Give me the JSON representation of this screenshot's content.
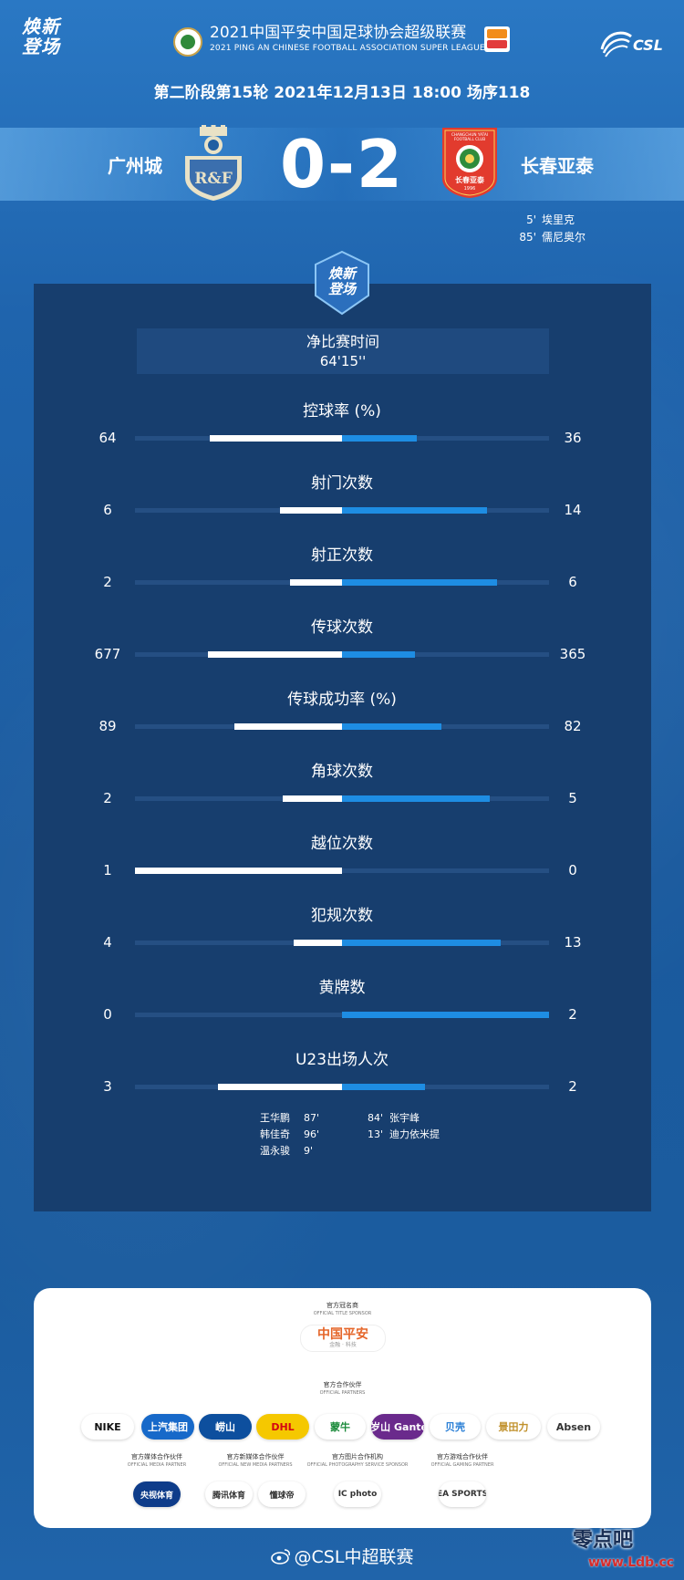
{
  "header": {
    "brand_line1": "焕新",
    "brand_line2": "登场",
    "league_title": "2021中国平安中国足球协会超级联赛",
    "league_subtitle": "2021 PING AN CHINESE FOOTBALL ASSOCIATION SUPER LEAGUE",
    "csl_text": "CSL"
  },
  "match": {
    "info": "第二阶段第15轮 2021年12月13日 18:00 场序118",
    "home_team": "广州城",
    "away_team": "长春亚泰",
    "score": "0-2",
    "home_crest_text": "R&F",
    "away_crest_top": "CHANGCHUN YATAI",
    "away_crest_mid": "FOOTBALL CLUB",
    "away_crest_name": "长春亚泰",
    "away_crest_year": "1996",
    "scorers": [
      {
        "minute": "5'",
        "name": "埃里克"
      },
      {
        "minute": "85'",
        "name": "儒尼奥尔"
      }
    ]
  },
  "center_badge": {
    "line1": "焕新",
    "line2": "登场"
  },
  "net_time": {
    "label": "净比赛时间",
    "value": "64'15''"
  },
  "stats": [
    {
      "label": "控球率 (%)",
      "home": "64",
      "away": "36",
      "home_v": 64,
      "away_v": 36
    },
    {
      "label": "射门次数",
      "home": "6",
      "away": "14",
      "home_v": 6,
      "away_v": 14
    },
    {
      "label": "射正次数",
      "home": "2",
      "away": "6",
      "home_v": 2,
      "away_v": 6
    },
    {
      "label": "传球次数",
      "home": "677",
      "away": "365",
      "home_v": 677,
      "away_v": 365
    },
    {
      "label": "传球成功率 (%)",
      "home": "89",
      "away": "82",
      "home_v": 89,
      "away_v": 82
    },
    {
      "label": "角球次数",
      "home": "2",
      "away": "5",
      "home_v": 2,
      "away_v": 5
    },
    {
      "label": "越位次数",
      "home": "1",
      "away": "0",
      "home_v": 1,
      "away_v": 0
    },
    {
      "label": "犯规次数",
      "home": "4",
      "away": "13",
      "home_v": 4,
      "away_v": 13
    },
    {
      "label": "黄牌数",
      "home": "0",
      "away": "2",
      "home_v": 0,
      "away_v": 2
    },
    {
      "label": "U23出场人次",
      "home": "3",
      "away": "2",
      "home_v": 3,
      "away_v": 2
    }
  ],
  "u23": {
    "home": [
      {
        "name": "王华鹏",
        "minute": "87'"
      },
      {
        "name": "韩佳奇",
        "minute": "96'"
      },
      {
        "name": "温永骏",
        "minute": "9'"
      }
    ],
    "away": [
      {
        "minute": "84'",
        "name": "张宇峰"
      },
      {
        "minute": "13'",
        "name": "迪力依米提"
      }
    ]
  },
  "partners": {
    "title_sponsor_head": "官方冠名商",
    "title_sponsor_sub": "OFFICIAL TITLE SPONSOR",
    "title_sponsor_name": "中国平安",
    "title_sponsor_tag": "金融 · 科技",
    "official_head": "官方合作伙伴",
    "official_sub": "OFFICIAL PARTNERS",
    "official": [
      "NIKE",
      "上汽集团",
      "崂山",
      "DHL",
      "蒙牛",
      "百岁山 Ganten",
      "贝壳",
      "景田力",
      "Absen"
    ],
    "groups": [
      {
        "head": "官方媒体合作伙伴",
        "sub": "OFFICIAL MEDIA PARTNER",
        "items": [
          "央视体育"
        ]
      },
      {
        "head": "官方新媒体合作伙伴",
        "sub": "OFFICIAL NEW MEDIA PARTNERS",
        "items": [
          "腾讯体育",
          "懂球帝"
        ]
      },
      {
        "head": "官方图片合作机构",
        "sub": "OFFICIAL PHOTOGRAPHY SERVICE SPONSOR",
        "items": [
          "IC photo"
        ]
      },
      {
        "head": "官方游戏合作伙伴",
        "sub": "OFFICIAL GAMING PARTNER",
        "items": [
          "EA SPORTS"
        ]
      }
    ]
  },
  "footer": {
    "account": "@CSL中超联赛"
  },
  "watermark": {
    "text": "零点吧",
    "url": "www.Ldb.cc"
  },
  "colors": {
    "home_bar": "#ffffff",
    "away_bar": "#1e8de3",
    "panel": "#173e6e",
    "accent": "#2a78c4"
  }
}
